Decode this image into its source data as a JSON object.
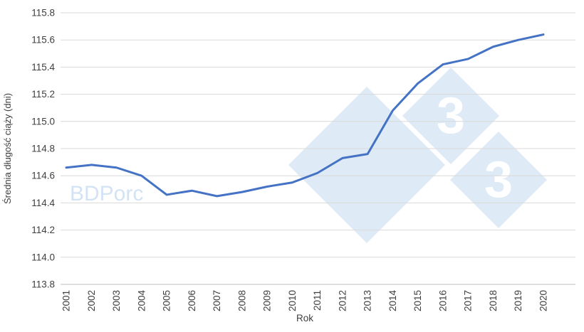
{
  "chart_data": {
    "type": "line",
    "title": "",
    "xlabel": "Rok",
    "ylabel": "Średnia długość ciąży (dni)",
    "x": [
      2001,
      2002,
      2003,
      2004,
      2005,
      2006,
      2007,
      2008,
      2009,
      2010,
      2011,
      2012,
      2013,
      2014,
      2015,
      2016,
      2017,
      2018,
      2019,
      2020
    ],
    "series": [
      {
        "name": "Średnia długość ciąży (dni)",
        "color": "#4472C4",
        "values": [
          114.66,
          114.68,
          114.66,
          114.6,
          114.46,
          114.49,
          114.45,
          114.48,
          114.52,
          114.55,
          114.62,
          114.73,
          114.76,
          115.08,
          115.28,
          115.42,
          115.46,
          115.55,
          115.6,
          115.64
        ]
      }
    ],
    "ylim": [
      113.8,
      115.8
    ],
    "ytick_step": 0.2,
    "ytick_labels": [
      "113.8",
      "114.0",
      "114.2",
      "114.4",
      "114.6",
      "114.8",
      "115.0",
      "115.2",
      "115.4",
      "115.6",
      "115.8"
    ],
    "grid": "horizontal",
    "legend": "none",
    "colors": {
      "line": "#4472C4",
      "grid": "#d9d9d9",
      "axis": "#bfbfbf",
      "tick_text": "#404040",
      "axis_title": "#404040"
    }
  },
  "watermarks": {
    "bdporc_label": "BDPorc",
    "diamond_digit": "3",
    "color": "#d3e3f3",
    "digit_color": "#ffffff"
  }
}
